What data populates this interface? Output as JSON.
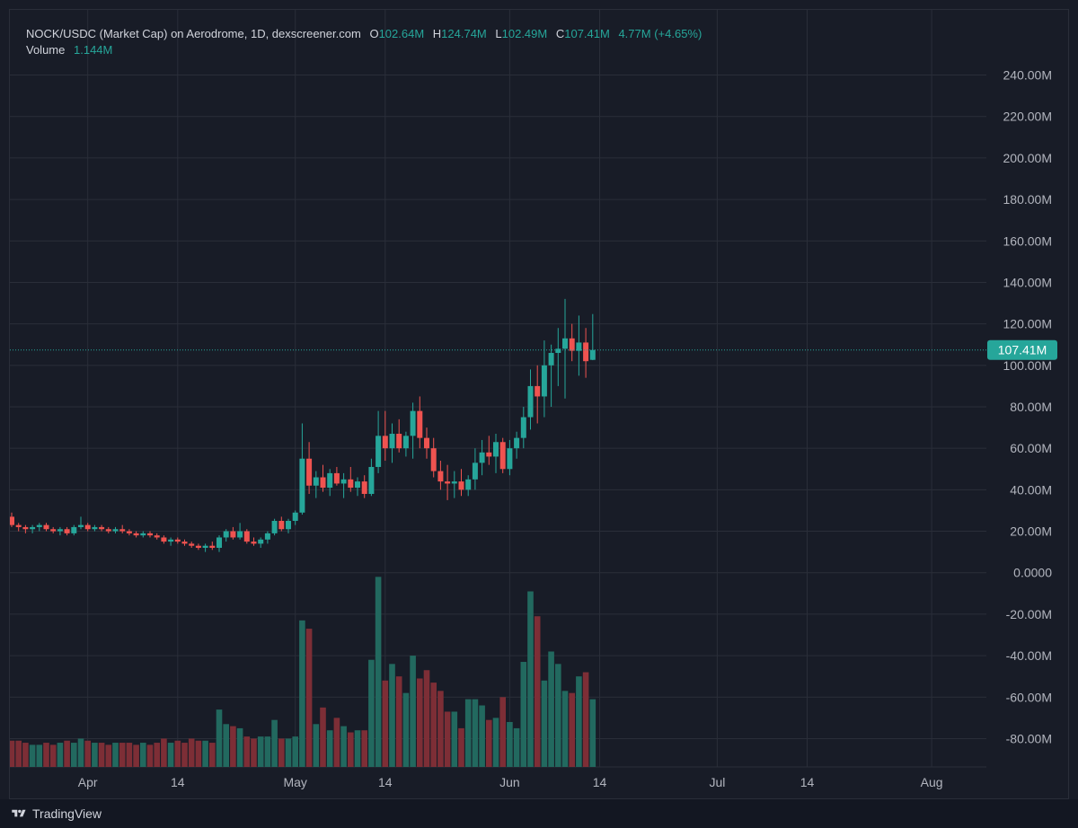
{
  "legend": {
    "symbol": "NOCK/USDC (Market Cap) on Aerodrome, 1D, dexscreener.com",
    "open_label": "O",
    "open": "102.64M",
    "high_label": "H",
    "high": "124.74M",
    "low_label": "L",
    "low": "102.49M",
    "close_label": "C",
    "close": "107.41M",
    "change": "4.77M (+4.65%)",
    "volume_label": "Volume",
    "volume": "1.144M"
  },
  "footer": {
    "brand": "TradingView",
    "logo_icon": "tradingview-logo-icon"
  },
  "colors": {
    "up": "#26a69a",
    "down": "#ef5350",
    "up_volume": "#22695f",
    "down_volume": "#7d2e36",
    "background": "#181c27",
    "grid": "#2a2e39",
    "text": "#b2b5be",
    "price_line": "#26a69a"
  },
  "chart_data": {
    "type": "candlestick",
    "title": "NOCK/USDC (Market Cap) on Aerodrome, 1D, dexscreener.com",
    "y_axis": {
      "min": -85,
      "max": 245,
      "unit": "M",
      "ticks": [
        "240.00M",
        "220.00M",
        "200.00M",
        "180.00M",
        "160.00M",
        "140.00M",
        "120.00M",
        "100.00M",
        "80.00M",
        "60.00M",
        "40.00M",
        "20.00M",
        "0.0000",
        "-20.00M",
        "-40.00M",
        "-60.00M",
        "-80.00M"
      ]
    },
    "x_axis": {
      "start_date": "2025-03-21",
      "ticks": [
        {
          "label": "Apr",
          "date": "2025-04-01"
        },
        {
          "label": "14",
          "date": "2025-04-14"
        },
        {
          "label": "May",
          "date": "2025-05-01"
        },
        {
          "label": "14",
          "date": "2025-05-14"
        },
        {
          "label": "Jun",
          "date": "2025-06-01"
        },
        {
          "label": "14",
          "date": "2025-06-14"
        },
        {
          "label": "Jul",
          "date": "2025-07-01"
        },
        {
          "label": "14",
          "date": "2025-07-14"
        },
        {
          "label": "Aug",
          "date": "2025-08-01"
        }
      ]
    },
    "last_price": {
      "value": 107.41,
      "label": "107.41M"
    },
    "grid": true,
    "series": [
      {
        "date": "2025-03-21",
        "o": 27,
        "h": 29,
        "l": 22,
        "c": 23,
        "v": -81
      },
      {
        "date": "2025-03-22",
        "o": 23,
        "h": 24,
        "l": 20,
        "c": 22,
        "v": -81
      },
      {
        "date": "2025-03-23",
        "o": 22,
        "h": 23,
        "l": 19,
        "c": 21,
        "v": -82
      },
      {
        "date": "2025-03-24",
        "o": 21,
        "h": 23,
        "l": 19,
        "c": 22,
        "v": -83
      },
      {
        "date": "2025-03-25",
        "o": 22,
        "h": 24,
        "l": 20,
        "c": 23,
        "v": -83
      },
      {
        "date": "2025-03-26",
        "o": 23,
        "h": 24,
        "l": 20,
        "c": 21,
        "v": -82
      },
      {
        "date": "2025-03-27",
        "o": 21,
        "h": 22,
        "l": 19,
        "c": 20,
        "v": -83
      },
      {
        "date": "2025-03-28",
        "o": 20,
        "h": 22,
        "l": 18,
        "c": 21,
        "v": -82
      },
      {
        "date": "2025-03-29",
        "o": 21,
        "h": 22,
        "l": 18,
        "c": 19,
        "v": -81
      },
      {
        "date": "2025-03-30",
        "o": 19,
        "h": 23,
        "l": 18,
        "c": 22,
        "v": -82
      },
      {
        "date": "2025-03-31",
        "o": 22,
        "h": 27,
        "l": 21,
        "c": 23,
        "v": -80
      },
      {
        "date": "2025-04-01",
        "o": 23,
        "h": 24,
        "l": 20,
        "c": 21,
        "v": -81
      },
      {
        "date": "2025-04-02",
        "o": 21,
        "h": 23,
        "l": 20,
        "c": 22,
        "v": -82
      },
      {
        "date": "2025-04-03",
        "o": 22,
        "h": 23,
        "l": 20,
        "c": 21,
        "v": -82
      },
      {
        "date": "2025-04-04",
        "o": 21,
        "h": 22,
        "l": 19,
        "c": 20,
        "v": -83
      },
      {
        "date": "2025-04-05",
        "o": 20,
        "h": 22,
        "l": 19,
        "c": 21,
        "v": -82
      },
      {
        "date": "2025-04-06",
        "o": 21,
        "h": 23,
        "l": 19,
        "c": 20,
        "v": -82
      },
      {
        "date": "2025-04-07",
        "o": 20,
        "h": 21,
        "l": 18,
        "c": 19,
        "v": -82
      },
      {
        "date": "2025-04-08",
        "o": 19,
        "h": 20,
        "l": 17,
        "c": 18,
        "v": -83
      },
      {
        "date": "2025-04-09",
        "o": 18,
        "h": 20,
        "l": 17,
        "c": 19,
        "v": -82
      },
      {
        "date": "2025-04-10",
        "o": 19,
        "h": 20,
        "l": 17,
        "c": 18,
        "v": -83
      },
      {
        "date": "2025-04-11",
        "o": 18,
        "h": 19,
        "l": 16,
        "c": 17,
        "v": -82
      },
      {
        "date": "2025-04-12",
        "o": 17,
        "h": 18,
        "l": 14,
        "c": 15,
        "v": -80
      },
      {
        "date": "2025-04-13",
        "o": 15,
        "h": 17,
        "l": 13,
        "c": 16,
        "v": -82
      },
      {
        "date": "2025-04-14",
        "o": 16,
        "h": 17,
        "l": 14,
        "c": 15,
        "v": -81
      },
      {
        "date": "2025-04-15",
        "o": 15,
        "h": 16,
        "l": 13,
        "c": 14,
        "v": -82
      },
      {
        "date": "2025-04-16",
        "o": 14,
        "h": 15,
        "l": 12,
        "c": 13,
        "v": -80
      },
      {
        "date": "2025-04-17",
        "o": 13,
        "h": 14,
        "l": 11,
        "c": 12,
        "v": -81
      },
      {
        "date": "2025-04-18",
        "o": 12,
        "h": 14,
        "l": 10,
        "c": 13,
        "v": -81
      },
      {
        "date": "2025-04-19",
        "o": 13,
        "h": 15,
        "l": 11,
        "c": 12,
        "v": -82
      },
      {
        "date": "2025-04-20",
        "o": 12,
        "h": 18,
        "l": 10,
        "c": 17,
        "v": -66
      },
      {
        "date": "2025-04-21",
        "o": 17,
        "h": 21,
        "l": 15,
        "c": 20,
        "v": -73
      },
      {
        "date": "2025-04-22",
        "o": 20,
        "h": 22,
        "l": 16,
        "c": 17,
        "v": -74
      },
      {
        "date": "2025-04-23",
        "o": 17,
        "h": 24,
        "l": 16,
        "c": 20,
        "v": -75
      },
      {
        "date": "2025-04-24",
        "o": 20,
        "h": 21,
        "l": 14,
        "c": 15,
        "v": -79
      },
      {
        "date": "2025-04-25",
        "o": 15,
        "h": 17,
        "l": 13,
        "c": 14,
        "v": -80
      },
      {
        "date": "2025-04-26",
        "o": 14,
        "h": 17,
        "l": 12,
        "c": 16,
        "v": -79
      },
      {
        "date": "2025-04-27",
        "o": 16,
        "h": 20,
        "l": 14,
        "c": 19,
        "v": -79
      },
      {
        "date": "2025-04-28",
        "o": 19,
        "h": 26,
        "l": 18,
        "c": 25,
        "v": -71
      },
      {
        "date": "2025-04-29",
        "o": 25,
        "h": 27,
        "l": 20,
        "c": 21,
        "v": -80
      },
      {
        "date": "2025-04-30",
        "o": 21,
        "h": 26,
        "l": 19,
        "c": 25,
        "v": -80
      },
      {
        "date": "2025-05-01",
        "o": 25,
        "h": 30,
        "l": 23,
        "c": 29,
        "v": -79
      },
      {
        "date": "2025-05-02",
        "o": 29,
        "h": 72,
        "l": 28,
        "c": 55,
        "v": -23
      },
      {
        "date": "2025-05-03",
        "o": 55,
        "h": 63,
        "l": 38,
        "c": 42,
        "v": -27
      },
      {
        "date": "2025-05-04",
        "o": 42,
        "h": 49,
        "l": 36,
        "c": 46,
        "v": -73
      },
      {
        "date": "2025-05-05",
        "o": 46,
        "h": 52,
        "l": 39,
        "c": 41,
        "v": -65
      },
      {
        "date": "2025-05-06",
        "o": 41,
        "h": 50,
        "l": 37,
        "c": 48,
        "v": -76
      },
      {
        "date": "2025-05-07",
        "o": 48,
        "h": 51,
        "l": 42,
        "c": 43,
        "v": -70
      },
      {
        "date": "2025-05-08",
        "o": 43,
        "h": 48,
        "l": 36,
        "c": 45,
        "v": -74
      },
      {
        "date": "2025-05-09",
        "o": 45,
        "h": 51,
        "l": 39,
        "c": 41,
        "v": -77
      },
      {
        "date": "2025-05-10",
        "o": 41,
        "h": 46,
        "l": 37,
        "c": 44,
        "v": -76
      },
      {
        "date": "2025-05-11",
        "o": 44,
        "h": 47,
        "l": 36,
        "c": 38,
        "v": -76
      },
      {
        "date": "2025-05-12",
        "o": 38,
        "h": 55,
        "l": 37,
        "c": 51,
        "v": -42
      },
      {
        "date": "2025-05-13",
        "o": 51,
        "h": 78,
        "l": 48,
        "c": 66,
        "v": -2
      },
      {
        "date": "2025-05-14",
        "o": 66,
        "h": 78,
        "l": 54,
        "c": 60,
        "v": -52
      },
      {
        "date": "2025-05-15",
        "o": 60,
        "h": 72,
        "l": 53,
        "c": 67,
        "v": -44
      },
      {
        "date": "2025-05-16",
        "o": 67,
        "h": 74,
        "l": 58,
        "c": 60,
        "v": -50
      },
      {
        "date": "2025-05-17",
        "o": 60,
        "h": 68,
        "l": 56,
        "c": 66,
        "v": -58
      },
      {
        "date": "2025-05-18",
        "o": 66,
        "h": 82,
        "l": 55,
        "c": 78,
        "v": -40
      },
      {
        "date": "2025-05-19",
        "o": 78,
        "h": 85,
        "l": 60,
        "c": 65,
        "v": -51
      },
      {
        "date": "2025-05-20",
        "o": 65,
        "h": 70,
        "l": 55,
        "c": 60,
        "v": -47
      },
      {
        "date": "2025-05-21",
        "o": 60,
        "h": 65,
        "l": 46,
        "c": 49,
        "v": -53
      },
      {
        "date": "2025-05-22",
        "o": 49,
        "h": 54,
        "l": 40,
        "c": 44,
        "v": -57
      },
      {
        "date": "2025-05-23",
        "o": 44,
        "h": 52,
        "l": 35,
        "c": 43,
        "v": -67
      },
      {
        "date": "2025-05-24",
        "o": 43,
        "h": 49,
        "l": 36,
        "c": 44,
        "v": -67
      },
      {
        "date": "2025-05-25",
        "o": 44,
        "h": 50,
        "l": 37,
        "c": 40,
        "v": -75
      },
      {
        "date": "2025-05-26",
        "o": 40,
        "h": 47,
        "l": 37,
        "c": 45,
        "v": -61
      },
      {
        "date": "2025-05-27",
        "o": 45,
        "h": 60,
        "l": 40,
        "c": 53,
        "v": -61
      },
      {
        "date": "2025-05-28",
        "o": 53,
        "h": 64,
        "l": 47,
        "c": 58,
        "v": -64
      },
      {
        "date": "2025-05-29",
        "o": 58,
        "h": 66,
        "l": 52,
        "c": 56,
        "v": -71
      },
      {
        "date": "2025-05-30",
        "o": 56,
        "h": 67,
        "l": 48,
        "c": 63,
        "v": -70
      },
      {
        "date": "2025-05-31",
        "o": 63,
        "h": 65,
        "l": 48,
        "c": 50,
        "v": -60
      },
      {
        "date": "2025-06-01",
        "o": 50,
        "h": 64,
        "l": 47,
        "c": 60,
        "v": -72
      },
      {
        "date": "2025-06-02",
        "o": 60,
        "h": 68,
        "l": 55,
        "c": 65,
        "v": -75
      },
      {
        "date": "2025-06-03",
        "o": 65,
        "h": 80,
        "l": 60,
        "c": 75,
        "v": -43
      },
      {
        "date": "2025-06-04",
        "o": 75,
        "h": 98,
        "l": 69,
        "c": 90,
        "v": -9
      },
      {
        "date": "2025-06-05",
        "o": 90,
        "h": 100,
        "l": 72,
        "c": 85,
        "v": -21
      },
      {
        "date": "2025-06-06",
        "o": 85,
        "h": 112,
        "l": 75,
        "c": 100,
        "v": -52
      },
      {
        "date": "2025-06-07",
        "o": 100,
        "h": 110,
        "l": 80,
        "c": 106,
        "v": -38
      },
      {
        "date": "2025-06-08",
        "o": 106,
        "h": 118,
        "l": 90,
        "c": 108,
        "v": -44
      },
      {
        "date": "2025-06-09",
        "o": 108,
        "h": 132,
        "l": 84,
        "c": 113,
        "v": -57
      },
      {
        "date": "2025-06-10",
        "o": 113,
        "h": 120,
        "l": 102,
        "c": 107,
        "v": -58
      },
      {
        "date": "2025-06-11",
        "o": 107,
        "h": 124,
        "l": 95,
        "c": 111,
        "v": -50
      },
      {
        "date": "2025-06-12",
        "o": 111,
        "h": 118,
        "l": 94,
        "c": 102,
        "v": -48
      },
      {
        "date": "2025-06-13",
        "o": 102.64,
        "h": 124.74,
        "l": 102.49,
        "c": 107.41,
        "v": -61
      }
    ]
  }
}
